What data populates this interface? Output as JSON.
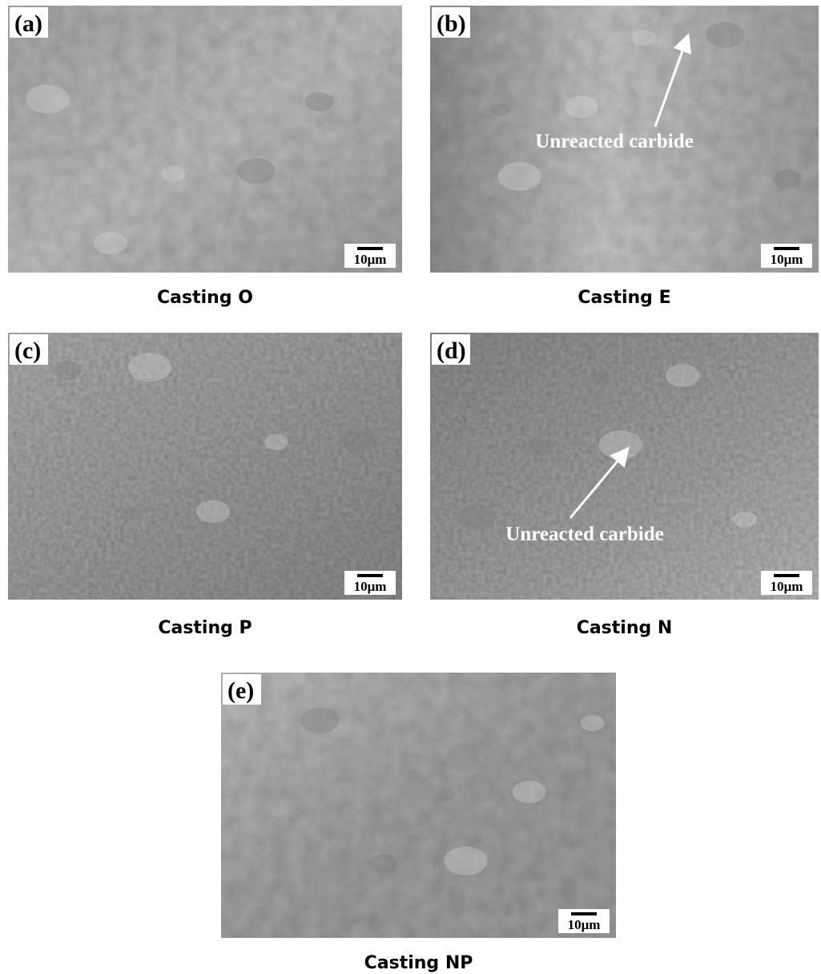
{
  "panels": [
    {
      "label": "(a)",
      "scale_bar": "10μm",
      "caption": "Casting O"
    },
    {
      "label": "(b)",
      "scale_bar": "10μm",
      "caption": "Casting E",
      "annotation": "Unreacted carbide"
    },
    {
      "label": "(c)",
      "scale_bar": "10μm",
      "caption": "Casting P"
    },
    {
      "label": "(d)",
      "scale_bar": "10μm",
      "caption": "Casting N",
      "annotation": "Unreacted carbide"
    },
    {
      "label": "(e)",
      "scale_bar": "10μm",
      "caption": "Casting NP"
    }
  ]
}
